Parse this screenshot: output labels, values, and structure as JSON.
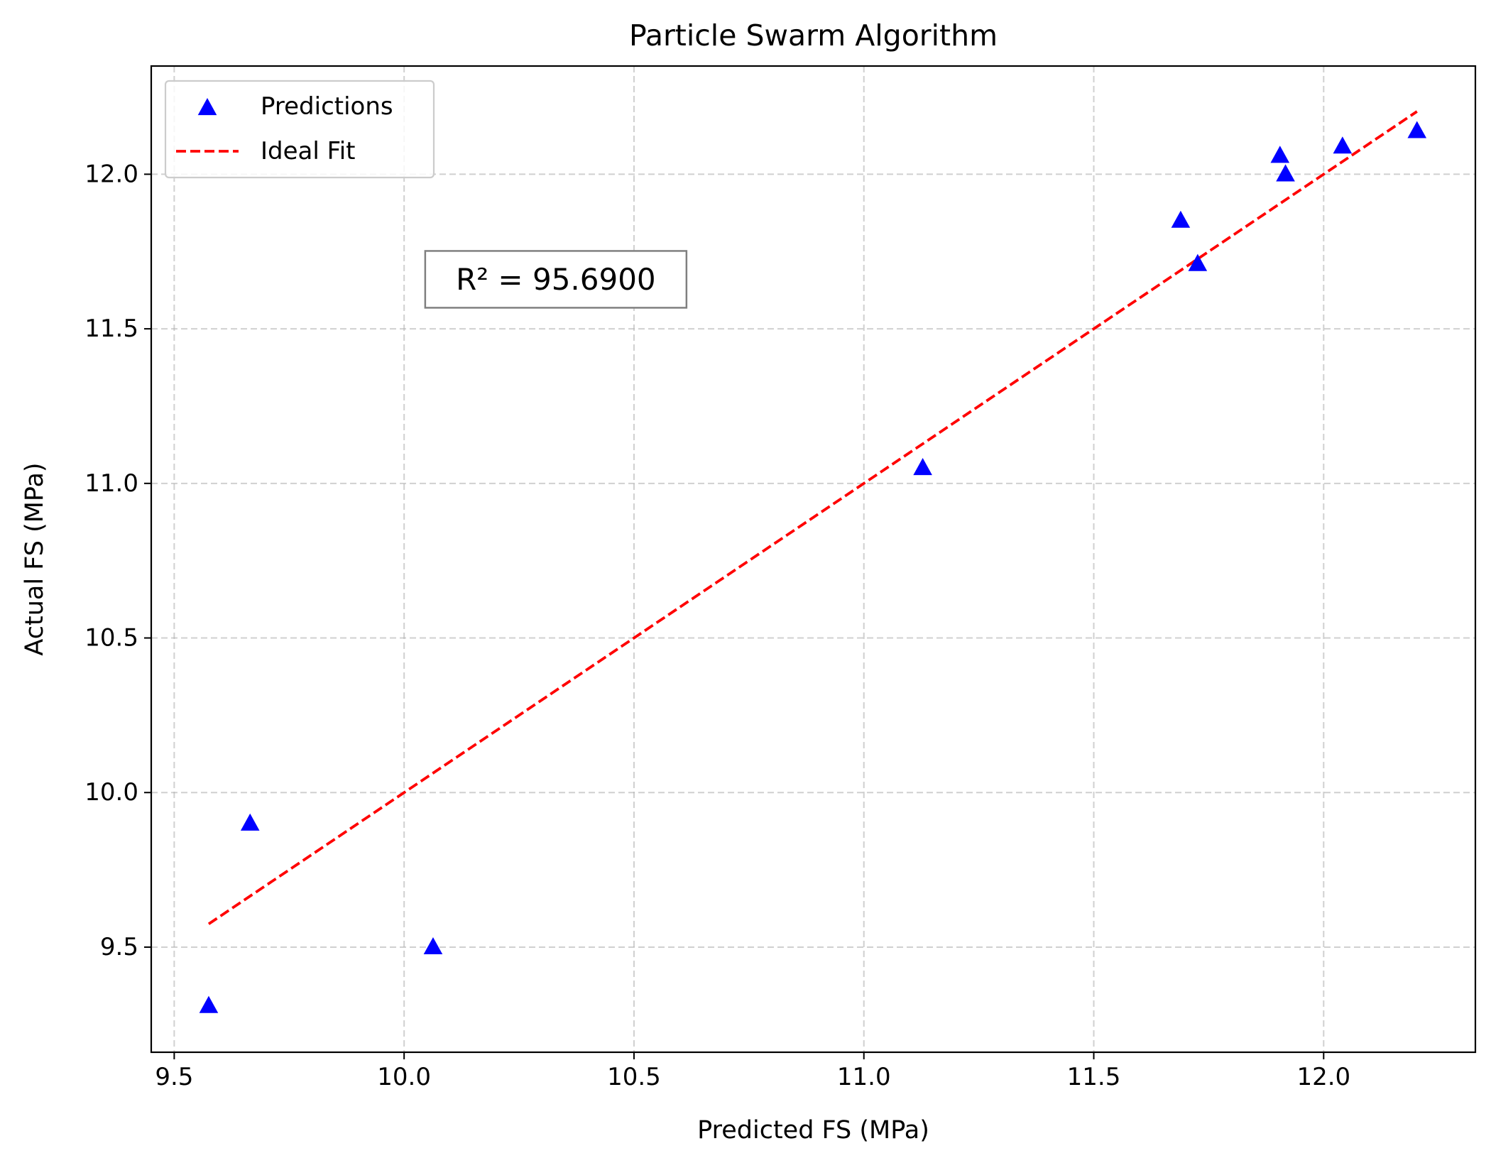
{
  "chart_data": {
    "type": "scatter",
    "title": "Particle Swarm Algorithm",
    "xlabel": "Predicted FS (MPa)",
    "ylabel": "Actual FS (MPa)",
    "xlim": [
      9.45,
      12.33
    ],
    "ylim": [
      9.16,
      12.35
    ],
    "xticks": [
      9.5,
      10.0,
      10.5,
      11.0,
      11.5,
      12.0
    ],
    "xtick_labels": [
      "9.5",
      "10.0",
      "10.5",
      "11.0",
      "11.5",
      "12.0"
    ],
    "yticks": [
      9.5,
      10.0,
      10.5,
      11.0,
      11.5,
      12.0
    ],
    "ytick_labels": [
      "9.5",
      "10.0",
      "10.5",
      "11.0",
      "11.5",
      "12.0"
    ],
    "grid": true,
    "legend_position": "upper-left",
    "series": [
      {
        "name": "Predictions",
        "marker": "triangle",
        "color": "#0000ff",
        "x": [
          9.575,
          9.665,
          10.063,
          11.128,
          11.689,
          11.726,
          11.905,
          11.917,
          12.041,
          12.203
        ],
        "y": [
          9.31,
          9.9,
          9.5,
          11.05,
          11.85,
          11.71,
          12.06,
          12.0,
          12.09,
          12.14
        ]
      },
      {
        "name": "Ideal Fit",
        "style": "dashed",
        "color": "#ff0000",
        "x": [
          9.575,
          12.203
        ],
        "y": [
          9.575,
          12.203
        ]
      }
    ],
    "annotation": {
      "text": "R² = 95.6900",
      "x": 10.33,
      "y": 11.66
    }
  }
}
